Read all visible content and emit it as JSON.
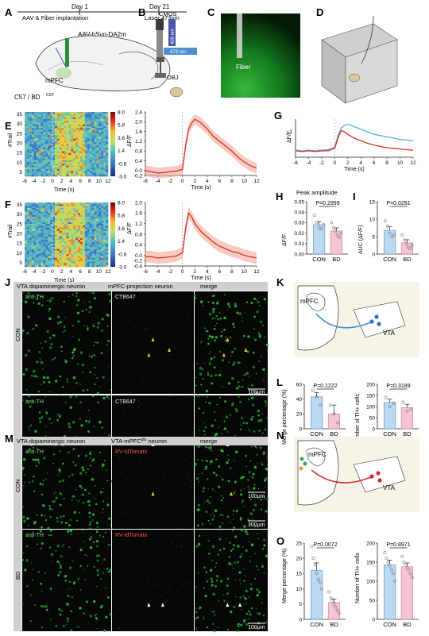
{
  "panels": {
    "A": {
      "letter": "A",
      "day1": "Day 1",
      "day21": "Day 21",
      "step1": "AAV & Fiber implantation",
      "step2": "Laser 473nm",
      "virus": "AAV-hSyn-DA2m",
      "region": "mPFC",
      "mouse": "C57 / BD",
      "mouse_sup": "C57"
    },
    "B": {
      "letter": "B",
      "cmos": "CMOS",
      "wl1": "405 nm",
      "wl2": "473 nm",
      "obj": "OBJ"
    },
    "C": {
      "letter": "C",
      "label": "Fiber"
    },
    "D": {
      "letter": "D"
    },
    "E": {
      "letter": "E",
      "heat_ylabel": "#Trail",
      "heat_yticks": [
        "35",
        "30",
        "25",
        "20",
        "15",
        "10",
        "5"
      ],
      "xticks": [
        "-6",
        "-4",
        "-2",
        "0",
        "2",
        "4",
        "6",
        "8",
        "10",
        "12"
      ],
      "xlabel": "Time (s)",
      "cbar": [
        "8.0",
        "5.8",
        "3.6",
        "1.4",
        "-0.8",
        "-3.0"
      ],
      "trace_ylabel": "ΔF/F",
      "trace_yticks": [
        "2.4",
        "2.0",
        "1.6",
        "1.2",
        "0.8",
        "0.4",
        "0.0",
        "-0.2"
      ]
    },
    "F": {
      "letter": "F",
      "heat_ylabel": "#Trail",
      "heat_yticks": [
        "35",
        "30",
        "25",
        "20",
        "15",
        "10",
        "5"
      ],
      "xticks": [
        "-6",
        "-4",
        "-2",
        "0",
        "2",
        "4",
        "6",
        "8",
        "10",
        "12"
      ],
      "xlabel": "Time (s)",
      "cbar": [
        "8.0",
        "5.8",
        "3.6",
        "1.4",
        "-0.8",
        "-3.0"
      ],
      "trace_ylabel": "ΔF/F",
      "trace_yticks": [
        "2.0",
        "1.6",
        "1.2",
        "0.8",
        "0.4",
        "0.0",
        "-0.2",
        "-0.4"
      ]
    },
    "G": {
      "letter": "G",
      "ylabel": "ΔF/F",
      "xlabel": "Time (s)",
      "xticks": [
        "-6",
        "-4",
        "-2",
        "0",
        "2",
        "4",
        "6",
        "8",
        "10",
        "12"
      ],
      "ytick": "1"
    },
    "H": {
      "letter": "H",
      "title": "Peak amplitude",
      "ylabel": "ΔF/F",
      "yticks": [
        "0.05",
        "0.04",
        "0.03",
        "0.02",
        "0.01",
        "0.00"
      ],
      "p": "P=0.2999",
      "groups": [
        "CON",
        "BD"
      ]
    },
    "I": {
      "letter": "I",
      "ylabel": "AUC (ΔF/F)",
      "yticks": [
        "15",
        "10",
        "5",
        "0"
      ],
      "p": "P=0.0291",
      "groups": [
        "CON",
        "BD"
      ]
    },
    "J": {
      "letter": "J",
      "col1": "VTA dopaminergic neuron",
      "col2": "mPFC-projection neuron",
      "col3": "merge",
      "row1": "CON",
      "row2": "BD",
      "stain1": "anti-TH",
      "stain2": "CTB647",
      "scale": "100μm"
    },
    "K": {
      "letter": "K",
      "src": "mPFC",
      "dst": "VTA"
    },
    "L": {
      "letter": "L",
      "ylabel1": "Merge percentage (%)",
      "yticks1": [
        "60",
        "40",
        "20",
        "0"
      ],
      "p1": "P=0.1222",
      "ylabel2": "Number of TH+ cells",
      "yticks2": [
        "200",
        "150",
        "100",
        "50",
        "0"
      ],
      "p2": "P=0.3189",
      "groups": [
        "CON",
        "BD"
      ]
    },
    "M": {
      "letter": "M",
      "col1": "VTA dopaminergic neuron",
      "col2": "VTA-mPFC",
      "col2_sup": "glu",
      "col2_tail": " neuron",
      "col3": "merge",
      "row1": "CON",
      "row2": "BD",
      "stain1": "anti-TH",
      "stain2": "RV-tdTomato",
      "scale": "100μm"
    },
    "N": {
      "letter": "N",
      "src": "mPFC",
      "dst": "VTA"
    },
    "O": {
      "letter": "O",
      "ylabel1": "Merge percentage (%)",
      "yticks1": [
        "25",
        "20",
        "15",
        "10",
        "5",
        "0"
      ],
      "p1": "P=0.0072",
      "ylabel2": "Number of TH+ cells",
      "yticks2": [
        "200",
        "150",
        "100",
        "50",
        "0"
      ],
      "p2": "P=0.8971",
      "groups": [
        "CON",
        "BD"
      ]
    }
  },
  "chart_data": [
    {
      "panel": "E",
      "type": "line",
      "x": [
        -6,
        -5,
        -4,
        -3,
        -2,
        -1,
        0,
        0.5,
        1,
        1.5,
        2,
        3,
        4,
        5,
        6,
        7,
        8,
        9,
        10,
        11,
        12
      ],
      "y": [
        0.0,
        -0.05,
        -0.1,
        -0.08,
        -0.05,
        -0.02,
        0.05,
        1.0,
        1.7,
        1.95,
        2.1,
        1.95,
        1.7,
        1.4,
        1.2,
        1.0,
        0.8,
        0.55,
        0.35,
        0.2,
        0.1
      ],
      "ylim": [
        -0.2,
        2.4
      ],
      "xlim": [
        -6,
        12
      ],
      "color": "#d9302b"
    },
    {
      "panel": "F",
      "type": "line",
      "x": [
        -6,
        -5,
        -4,
        -3,
        -2,
        -1,
        0,
        0.5,
        1,
        1.5,
        2,
        3,
        4,
        5,
        6,
        7,
        8,
        9,
        10,
        11,
        12
      ],
      "y": [
        -0.05,
        -0.05,
        -0.1,
        -0.08,
        -0.05,
        -0.02,
        0.1,
        1.0,
        1.6,
        1.45,
        1.2,
        0.9,
        0.7,
        0.5,
        0.35,
        0.25,
        0.15,
        0.1,
        0.0,
        -0.05,
        -0.1
      ],
      "ylim": [
        -0.4,
        2.0
      ],
      "xlim": [
        -6,
        12
      ],
      "color": "#d9302b"
    },
    {
      "panel": "G",
      "type": "line",
      "x": [
        -6,
        -5,
        -4,
        -3,
        -2,
        -1,
        0,
        0.5,
        1,
        1.5,
        2,
        3,
        4,
        5,
        6,
        7,
        8,
        9,
        10,
        11,
        12
      ],
      "series": [
        {
          "color": "#5aaee0",
          "values": [
            0.05,
            0.0,
            0.05,
            0.0,
            0.05,
            0.1,
            0.3,
            1.2,
            1.8,
            2.0,
            2.1,
            1.9,
            1.7,
            1.5,
            1.3,
            1.2,
            1.1,
            1.0,
            0.9,
            0.85,
            0.8
          ]
        },
        {
          "color": "#d9302b",
          "values": [
            0.0,
            -0.05,
            0.0,
            -0.05,
            0.0,
            0.0,
            0.2,
            1.0,
            1.6,
            1.5,
            1.3,
            1.0,
            0.8,
            0.6,
            0.45,
            0.35,
            0.25,
            0.2,
            0.15,
            0.1,
            0.05
          ]
        }
      ],
      "ylim": [
        -0.5,
        2.5
      ],
      "xlim": [
        -6,
        12
      ]
    },
    {
      "panel": "H",
      "type": "bar",
      "categories": [
        "CON",
        "BD"
      ],
      "values": [
        0.028,
        0.022
      ],
      "errors": [
        0.003,
        0.003
      ],
      "points": [
        [
          0.037,
          0.03,
          0.025,
          0.024,
          0.028
        ],
        [
          0.03,
          0.025,
          0.022,
          0.018,
          0.016,
          0.02
        ]
      ],
      "ylim": [
        0,
        0.05
      ],
      "colors": [
        "#bcd9f2",
        "#f6c5d5"
      ]
    },
    {
      "panel": "I",
      "type": "bar",
      "categories": [
        "CON",
        "BD"
      ],
      "values": [
        6.8,
        3.2
      ],
      "errors": [
        1.0,
        0.9
      ],
      "points": [
        [
          9.5,
          8.0,
          6.0,
          5.0,
          5.5
        ],
        [
          5.5,
          4.0,
          3.0,
          2.0,
          1.5,
          2.5
        ]
      ],
      "ylim": [
        0,
        15
      ],
      "colors": [
        "#bcd9f2",
        "#f6c5d5"
      ]
    },
    {
      "panel": "L1",
      "type": "bar",
      "categories": [
        "CON",
        "BD"
      ],
      "values": [
        43,
        20
      ],
      "errors": [
        6,
        12
      ],
      "points": [
        [
          52,
          43,
          32
        ],
        [
          32,
          20,
          8
        ]
      ],
      "ylim": [
        0,
        60
      ],
      "colors": [
        "#bcd9f2",
        "#f6c5d5"
      ]
    },
    {
      "panel": "L2",
      "type": "bar",
      "categories": [
        "CON",
        "BD"
      ],
      "values": [
        118,
        95
      ],
      "errors": [
        15,
        15
      ],
      "points": [
        [
          140,
          100,
          115
        ],
        [
          120,
          80,
          88
        ]
      ],
      "ylim": [
        0,
        200
      ],
      "colors": [
        "#bcd9f2",
        "#f6c5d5"
      ]
    },
    {
      "panel": "O1",
      "type": "bar",
      "categories": [
        "CON",
        "BD"
      ],
      "values": [
        16,
        5.5
      ],
      "errors": [
        2.5,
        1.2
      ],
      "points": [
        [
          24,
          20,
          18,
          15,
          13,
          12,
          10
        ],
        [
          9,
          7,
          6,
          5,
          4,
          3,
          2
        ]
      ],
      "ylim": [
        0,
        25
      ],
      "colors": [
        "#bcd9f2",
        "#f6c5d5"
      ]
    },
    {
      "panel": "O2",
      "type": "bar",
      "categories": [
        "CON",
        "BD"
      ],
      "values": [
        143,
        138
      ],
      "errors": [
        12,
        10
      ],
      "points": [
        [
          175,
          160,
          150,
          140,
          130,
          120,
          100
        ],
        [
          165,
          150,
          145,
          135,
          130,
          120,
          110
        ]
      ],
      "ylim": [
        0,
        200
      ],
      "colors": [
        "#bcd9f2",
        "#f6c5d5"
      ]
    }
  ]
}
